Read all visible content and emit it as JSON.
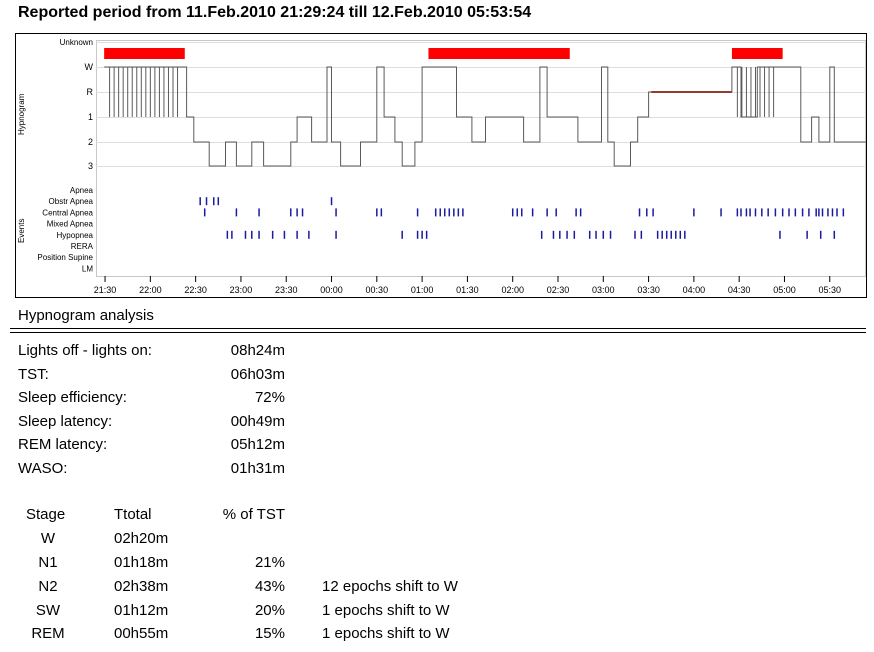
{
  "header": {
    "title": "Reported period from 11.Feb.2010 21:29:24 till 12.Feb.2010 05:53:54"
  },
  "chart_data": {
    "type": "hypnogram",
    "y_group_labels": [
      "Hypnogram",
      "Events"
    ],
    "stage_labels": [
      "Unknown",
      "W",
      "R",
      "1",
      "2",
      "3"
    ],
    "event_labels": [
      "Apnea",
      "Obstr Apnea",
      "Central Apnea",
      "Mixed Apnea",
      "Hypopnea",
      "RERA",
      "Position Supine",
      "LM"
    ],
    "x_tick_labels": [
      "21:30",
      "22:00",
      "22:30",
      "23:00",
      "23:30",
      "00:00",
      "00:30",
      "01:00",
      "01:30",
      "02:00",
      "02:30",
      "03:00",
      "03:30",
      "04:00",
      "04:30",
      "05:00",
      "05:30"
    ],
    "x_tick_times_hours": [
      21.5,
      22.0,
      22.5,
      23.0,
      23.5,
      24.0,
      24.5,
      25.0,
      25.5,
      26.0,
      26.5,
      27.0,
      27.5,
      28.0,
      28.5,
      29.0,
      29.5
    ],
    "x_range_hours": [
      21.4,
      29.9
    ],
    "colors": {
      "hypnogram": "#5a5a5a",
      "unknown_bar": "#ff0000",
      "rem_line": "#cc2200",
      "events": "#1a1aa0",
      "grid": "#dddddd"
    },
    "unknown_segments": [
      [
        21.49,
        22.38
      ],
      [
        25.07,
        26.63
      ],
      [
        28.42,
        28.98
      ]
    ],
    "rem_segments": [
      [
        27.53,
        28.42
      ]
    ],
    "hypnogram_steps": [
      [
        21.49,
        "W"
      ],
      [
        22.4,
        "1"
      ],
      [
        22.48,
        "2"
      ],
      [
        22.65,
        "3"
      ],
      [
        22.83,
        "2"
      ],
      [
        22.95,
        "3"
      ],
      [
        23.12,
        "2"
      ],
      [
        23.25,
        "3"
      ],
      [
        23.55,
        "2"
      ],
      [
        23.62,
        "1"
      ],
      [
        23.78,
        "2"
      ],
      [
        23.95,
        "W"
      ],
      [
        24.0,
        "2"
      ],
      [
        24.1,
        "3"
      ],
      [
        24.32,
        "2"
      ],
      [
        24.5,
        "W"
      ],
      [
        24.58,
        "1"
      ],
      [
        24.7,
        "2"
      ],
      [
        24.78,
        "3"
      ],
      [
        24.92,
        "2"
      ],
      [
        25.0,
        "W"
      ],
      [
        25.38,
        "1"
      ],
      [
        25.55,
        "2"
      ],
      [
        25.7,
        "1"
      ],
      [
        26.12,
        "2"
      ],
      [
        26.3,
        "W"
      ],
      [
        26.38,
        "1"
      ],
      [
        26.72,
        "2"
      ],
      [
        26.98,
        "W"
      ],
      [
        27.05,
        "2"
      ],
      [
        27.12,
        "3"
      ],
      [
        27.3,
        "2"
      ],
      [
        27.38,
        "1"
      ],
      [
        27.5,
        "R"
      ],
      [
        28.42,
        "W"
      ],
      [
        28.52,
        "1"
      ],
      [
        28.7,
        "W"
      ],
      [
        29.18,
        "2"
      ],
      [
        29.3,
        "1"
      ],
      [
        29.38,
        "2"
      ],
      [
        29.5,
        "W"
      ],
      [
        29.55,
        "2"
      ],
      [
        29.9,
        "2"
      ]
    ],
    "event_marks": {
      "Obstr Apnea": [
        22.55,
        22.62,
        22.7,
        22.75,
        24.0
      ],
      "Central Apnea": [
        22.6,
        22.95,
        23.2,
        23.55,
        23.62,
        23.68,
        24.05,
        24.5,
        24.55,
        24.95,
        25.15,
        25.2,
        25.25,
        25.3,
        25.35,
        25.4,
        25.45,
        26.0,
        26.05,
        26.1,
        26.22,
        26.38,
        26.48,
        26.7,
        26.75,
        27.4,
        27.48,
        27.55,
        28.0,
        28.3,
        28.48,
        28.52,
        28.58,
        28.62,
        28.68,
        28.75,
        28.82,
        28.9,
        28.98,
        29.05,
        29.12,
        29.2,
        29.27,
        29.35,
        29.38,
        29.42,
        29.48,
        29.53,
        29.58,
        29.65
      ],
      "Hypopnea": [
        22.85,
        22.9,
        23.05,
        23.12,
        23.2,
        23.35,
        23.48,
        23.62,
        23.75,
        24.05,
        24.78,
        24.95,
        25.0,
        25.05,
        26.32,
        26.45,
        26.52,
        26.6,
        26.68,
        26.85,
        26.92,
        27.0,
        27.08,
        27.35,
        27.42,
        27.6,
        27.65,
        27.7,
        27.75,
        27.8,
        27.85,
        27.9,
        28.95,
        29.25,
        29.4,
        29.55
      ]
    }
  },
  "analysis": {
    "title": "Hypnogram analysis",
    "summary": [
      {
        "label": "Lights off - lights on:",
        "value": "08h24m"
      },
      {
        "label": "TST:",
        "value": "06h03m"
      },
      {
        "label": "Sleep efficiency:",
        "value": "72%"
      },
      {
        "label": "Sleep latency:",
        "value": "00h49m"
      },
      {
        "label": "REM latency:",
        "value": "05h12m"
      },
      {
        "label": "WASO:",
        "value": "01h31m"
      }
    ],
    "stage_table": {
      "headers": [
        "Stage",
        "Ttotal",
        "% of TST"
      ],
      "rows": [
        {
          "stage": "W",
          "total": "02h20m",
          "pct": "",
          "note": ""
        },
        {
          "stage": "N1",
          "total": "01h18m",
          "pct": "21%",
          "note": ""
        },
        {
          "stage": "N2",
          "total": "02h38m",
          "pct": "43%",
          "note": "12 epochs shift to W"
        },
        {
          "stage": "SW",
          "total": "01h12m",
          "pct": "20%",
          "note": "1 epochs shift to W"
        },
        {
          "stage": "REM",
          "total": "00h55m",
          "pct": "15%",
          "note": "1 epochs shift to W"
        }
      ]
    }
  }
}
